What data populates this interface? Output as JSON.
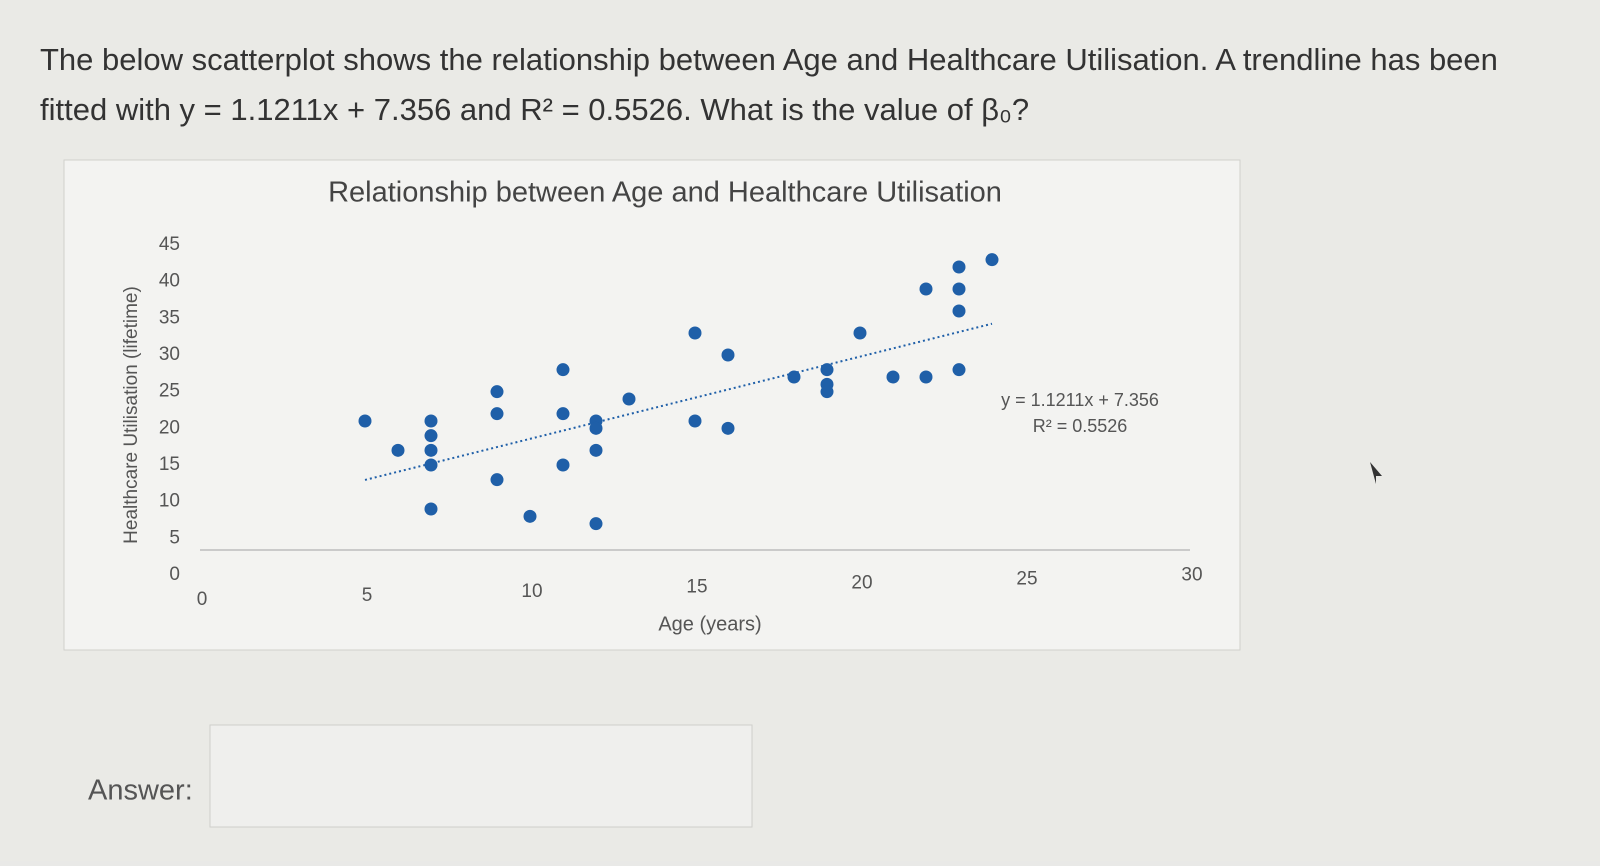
{
  "question": {
    "line1": "The below scatterplot shows the relationship between Age and Healthcare Utilisation. A trendline has been",
    "line2": "fitted with y = 1.1211x + 7.356 and R² = 0.5526. What is the value of β₀?"
  },
  "answer_label": "Answer:",
  "chart_data": {
    "type": "scatter",
    "title": "Relationship between Age and Healthcare Utilisation",
    "x_label": "Age (years)",
    "y_label": "Healthcare Utilisation (lifetime)",
    "x": [
      5,
      6,
      7,
      7,
      7,
      7,
      7,
      9,
      9,
      9,
      10,
      11,
      11,
      11,
      12,
      12,
      12,
      12,
      13,
      15,
      15,
      16,
      16,
      18,
      19,
      19,
      19,
      20,
      21,
      22,
      22,
      23,
      23,
      23,
      23,
      24
    ],
    "series": [
      {
        "color": "#1f5fa8",
        "values": [
          21,
          17,
          21,
          19,
          17,
          15,
          9,
          25,
          22,
          13,
          8,
          28,
          22,
          15,
          21,
          20,
          17,
          7,
          24,
          33,
          21,
          30,
          20,
          27,
          28,
          26,
          25,
          33,
          27,
          27,
          39,
          42,
          39,
          36,
          28,
          43
        ]
      }
    ],
    "xlim": [
      0,
      30
    ],
    "xticks": [
      0,
      5,
      10,
      15,
      20,
      25,
      30
    ],
    "ylim": [
      0,
      45
    ],
    "yticks": [
      0,
      5,
      10,
      15,
      20,
      25,
      30,
      35,
      40,
      45
    ],
    "grid": false,
    "trendline": {
      "slope": 1.1211,
      "intercept": 7.356,
      "color": "#1f5fa8",
      "equation_label": "y = 1.1211x + 7.356",
      "r2_label": "R² = 0.5526"
    }
  }
}
